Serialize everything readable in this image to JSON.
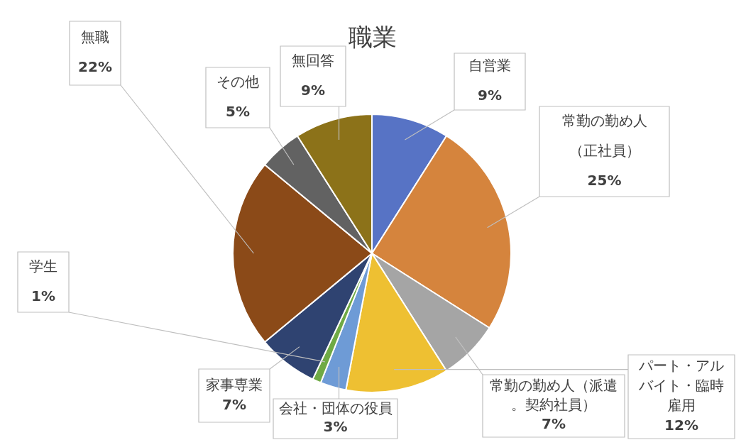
{
  "chart_data": {
    "type": "pie",
    "title": "職業",
    "categories": [
      "自営業",
      "常勤の勤め人（正社員）",
      "常勤の勤め人（派遣。契約社員）",
      "パート・アルバイト・臨時雇用",
      "会社・団体の役員",
      "学生",
      "家事専業",
      "無職",
      "その他",
      "無回答"
    ],
    "values": [
      9,
      25,
      7,
      12,
      3,
      1,
      7,
      22,
      5,
      9
    ],
    "colors": [
      "#5773c5",
      "#d5843d",
      "#a5a5a5",
      "#eec032",
      "#6e9bd6",
      "#6faa45",
      "#2f4371",
      "#8b4a18",
      "#626262",
      "#8c7219"
    ],
    "value_labels": [
      "9%",
      "25%",
      "7%",
      "12%",
      "3%",
      "1%",
      "7%",
      "22%",
      "5%",
      "9%"
    ],
    "legend": false
  }
}
